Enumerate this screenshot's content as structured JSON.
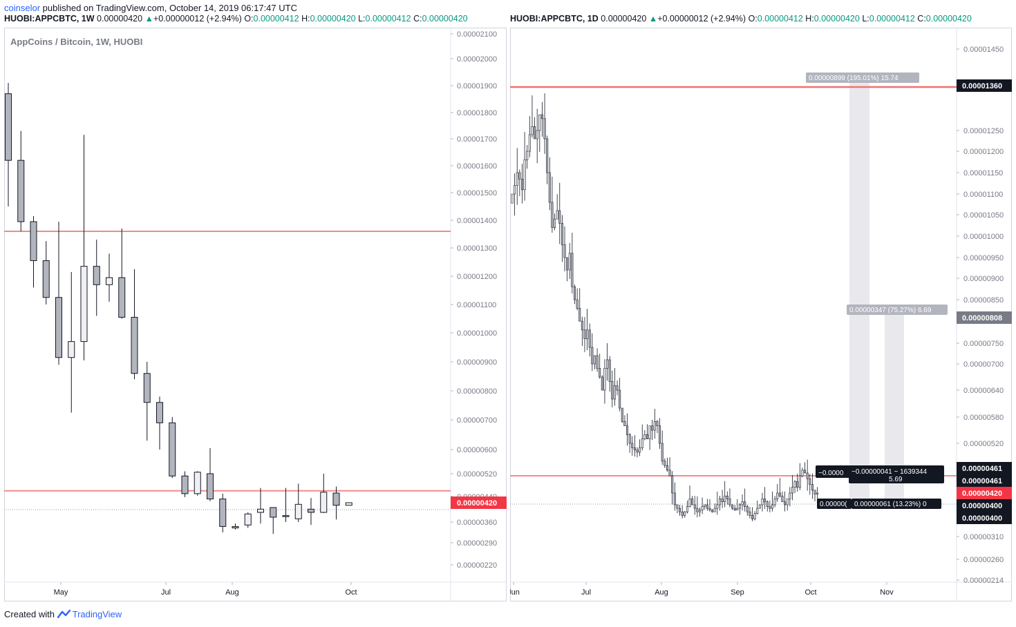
{
  "header": {
    "author": "coinselor",
    "published": " published on TradingView.com, October 14, 2019 06:17:47 UTC"
  },
  "left_header": {
    "symbol": "HUOBI:APPCBTC, 1W",
    "price": "0.00000420",
    "arrow": "▲",
    "change": "+0.00000012 (+2.94%)",
    "o_label": "O:",
    "o": "0.00000412",
    "h_label": "H:",
    "h": "0.00000420",
    "l_label": "L:",
    "l": "0.00000412",
    "c_label": "C:",
    "c": "0.00000420"
  },
  "right_header": {
    "symbol": "HUOBI:APPCBTC, 1D",
    "price": "0.00000420",
    "arrow": "▲",
    "change": "+0.00000012 (+2.94%)",
    "o_label": "O:",
    "o": "0.00000412",
    "h_label": "H:",
    "h": "0.00000420",
    "l_label": "L:",
    "l": "0.00000412",
    "c_label": "C:",
    "c": "0.00000420"
  },
  "watermark": "AppCoins / Bitcoin, 1W, HUOBI",
  "footer": {
    "created": "Created with",
    "brand": "TradingView"
  },
  "colors": {
    "candle_down": "#b2b5be",
    "candle_up": "#f0f0f3",
    "outline": "#131722",
    "hline": "#f28b8b",
    "price_tag": "#f23645",
    "dark_tag": "#131722",
    "grey_tag": "#b2b5be",
    "projection": "#e9e9ed"
  },
  "chart_data": [
    {
      "type": "candlestick",
      "title": "AppCoins / Bitcoin, 1W, HUOBI",
      "interval": "1W",
      "x_ticks": [
        "May",
        "Jul",
        "Aug",
        "Oct"
      ],
      "y_ticks": [
        "0.00002100",
        "0.00002000",
        "0.00001900",
        "0.00001800",
        "0.00001700",
        "0.00001600",
        "0.00001500",
        "0.00001400",
        "0.00001300",
        "0.00001200",
        "0.00001100",
        "0.00001000",
        "0.00000900",
        "0.00000800",
        "0.00000700",
        "0.00000600",
        "0.00000520",
        "0.00000440",
        "0.00000360",
        "0.00000290",
        "0.00000220"
      ],
      "last_price_label": "0.00000420",
      "horizontal_lines": [
        1.36e-05,
        4.6e-06
      ],
      "candles": [
        {
          "o": 1870,
          "h": 1910,
          "l": 1450,
          "c": 1620
        },
        {
          "o": 1620,
          "h": 1730,
          "l": 1360,
          "c": 1395
        },
        {
          "o": 1395,
          "h": 1415,
          "l": 1160,
          "c": 1255
        },
        {
          "o": 1255,
          "h": 1325,
          "l": 1100,
          "c": 1125
        },
        {
          "o": 1125,
          "h": 1395,
          "l": 890,
          "c": 915
        },
        {
          "o": 915,
          "h": 1215,
          "l": 725,
          "c": 970
        },
        {
          "o": 970,
          "h": 1715,
          "l": 905,
          "c": 1235
        },
        {
          "o": 1235,
          "h": 1330,
          "l": 1060,
          "c": 1170
        },
        {
          "o": 1170,
          "h": 1280,
          "l": 1110,
          "c": 1195
        },
        {
          "o": 1195,
          "h": 1370,
          "l": 1050,
          "c": 1055
        },
        {
          "o": 1055,
          "h": 1225,
          "l": 840,
          "c": 860
        },
        {
          "o": 860,
          "h": 900,
          "l": 630,
          "c": 760
        },
        {
          "o": 760,
          "h": 780,
          "l": 600,
          "c": 690
        },
        {
          "o": 690,
          "h": 710,
          "l": 505,
          "c": 512
        },
        {
          "o": 512,
          "h": 528,
          "l": 438,
          "c": 450
        },
        {
          "o": 450,
          "h": 528,
          "l": 443,
          "c": 525
        },
        {
          "o": 520,
          "h": 605,
          "l": 425,
          "c": 432
        },
        {
          "o": 432,
          "h": 450,
          "l": 325,
          "c": 345
        },
        {
          "o": 345,
          "h": 355,
          "l": 335,
          "c": 340
        },
        {
          "o": 350,
          "h": 390,
          "l": 340,
          "c": 385
        },
        {
          "o": 390,
          "h": 470,
          "l": 355,
          "c": 400
        },
        {
          "o": 405,
          "h": 405,
          "l": 320,
          "c": 375
        },
        {
          "o": 380,
          "h": 470,
          "l": 360,
          "c": 378
        },
        {
          "o": 370,
          "h": 485,
          "l": 360,
          "c": 415
        },
        {
          "o": 400,
          "h": 435,
          "l": 350,
          "c": 390
        },
        {
          "o": 390,
          "h": 520,
          "l": 388,
          "c": 455
        },
        {
          "o": 452,
          "h": 475,
          "l": 368,
          "c": 412
        },
        {
          "o": 412,
          "h": 420,
          "l": 412,
          "c": 420
        }
      ]
    },
    {
      "type": "candlestick",
      "interval": "1D",
      "scale": "log",
      "x_ticks": [
        "Jun",
        "Jul",
        "Aug",
        "Sep",
        "Oct",
        "Nov"
      ],
      "y_ticks": [
        "0.00001450",
        "0.00001360",
        "0.00001250",
        "0.00001200",
        "0.00001150",
        "0.00001100",
        "0.00001050",
        "0.00001000",
        "0.00000950",
        "0.00000900",
        "0.00000850",
        "0.00000808",
        "0.00000750",
        "0.00000700",
        "0.00000640",
        "0.00000580",
        "0.00000520",
        "0.00000461",
        "0.00000461",
        "0.00000420",
        "0.00000400",
        "0.00000400",
        "0.00000310",
        "0.00000260",
        "0.00000214"
      ],
      "horizontal_lines": [
        1.36e-05,
        4.6e-06
      ],
      "price_tags": {
        "top_line": "0.00001360",
        "mid_target": "0.00000808",
        "upper_461": "0.00000461",
        "lower_461": "0.00000461",
        "last": "0.00000420",
        "upper_400": "0.00000400",
        "lower_400": "0.00000400"
      },
      "annotations": {
        "target_1": "0.00000899 (195.01%) 15.74",
        "target_2": "0.00000347 (75.27%) 6.69",
        "measure_a": "−0.0000",
        "measure_b": "−0.00000041 ~ 1639344",
        "measure_b2": "5.69",
        "measure_c": "0.00000(",
        "measure_d": "0.00000061 (13.23%) 0"
      },
      "closes": [
        1100,
        1120,
        1150,
        1135,
        1110,
        1180,
        1200,
        1240,
        1260,
        1230,
        1250,
        1290,
        1280,
        1230,
        1150,
        1080,
        1020,
        1040,
        1060,
        1030,
        980,
        950,
        920,
        960,
        880,
        850,
        830,
        800,
        780,
        760,
        780,
        740,
        700,
        720,
        690,
        670,
        640,
        690,
        710,
        660,
        620,
        650,
        640,
        600,
        570,
        560,
        540,
        520,
        510,
        505,
        500,
        510,
        530,
        540,
        530,
        560,
        550,
        570,
        560,
        520,
        480,
        470,
        460,
        450,
        420,
        400,
        390,
        380,
        370,
        380,
        395,
        410,
        400,
        390,
        380,
        385,
        395,
        400,
        390,
        385,
        380,
        390,
        400,
        410,
        405,
        415,
        410,
        400,
        390,
        385,
        390,
        400,
        405,
        395,
        380,
        370,
        360,
        375,
        390,
        400,
        410,
        405,
        395,
        390,
        400,
        410,
        420,
        415,
        405,
        400,
        410,
        420,
        430,
        440,
        430,
        450,
        460,
        455,
        445,
        435,
        425,
        418,
        420
      ]
    }
  ]
}
